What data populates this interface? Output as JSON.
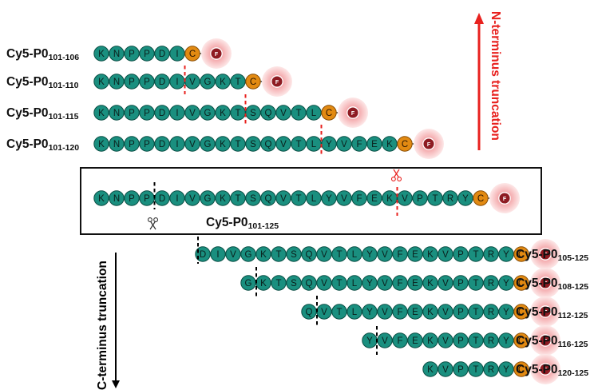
{
  "colors": {
    "residue_fill": "#1a8f7f",
    "residue_stroke": "#0b4f45",
    "cys_fill": "#e28a12",
    "cys_stroke": "#8a4e05",
    "fluor_core": "#8e1b22",
    "fluor_glow": "#f3b6b8",
    "n_terminus": "#e8211e",
    "c_terminus": "#000000",
    "cut_n": "#e8211e",
    "cut_c": "#000000"
  },
  "fluorophore_label": "F",
  "cys_label": "C",
  "n_terminus_label": "N-terminus truncation",
  "c_terminus_label": "C-terminus truncation",
  "full_peptide": {
    "label_main": "Cy5-P0",
    "label_sub": "101-125",
    "sequence": "KNPPDIVGKTSQVTLYVFEKVPTRY"
  },
  "n_truncations": [
    {
      "label_main": "Cy5-P0",
      "label_sub": "101-106",
      "sequence": "KNPPDI"
    },
    {
      "label_main": "Cy5-P0",
      "label_sub": "101-110",
      "sequence": "KNPPDIVGKT"
    },
    {
      "label_main": "Cy5-P0",
      "label_sub": "101-115",
      "sequence": "KNPPDIVGKTSQVTL"
    },
    {
      "label_main": "Cy5-P0",
      "label_sub": "101-120",
      "sequence": "KNPPDIVGKTSQVTLYVFEK"
    }
  ],
  "c_truncations": [
    {
      "label_main": "Cy5-P0",
      "label_sub": "105-125",
      "sequence": "DIVGKTSQVTLYVFEKVPTRY"
    },
    {
      "label_main": "Cy5-P0",
      "label_sub": "108-125",
      "sequence": "GKTSQVTLYVFEKVPTRY"
    },
    {
      "label_main": "Cy5-P0",
      "label_sub": "112-125",
      "sequence": "QVTLYVFEKVPTRY"
    },
    {
      "label_main": "Cy5-P0",
      "label_sub": "116-125",
      "sequence": "YVFEKVPTRY"
    },
    {
      "label_main": "Cy5-P0",
      "label_sub": "120-125",
      "sequence": "KVPTRY"
    }
  ],
  "scissors_icon": "scissors-icon"
}
